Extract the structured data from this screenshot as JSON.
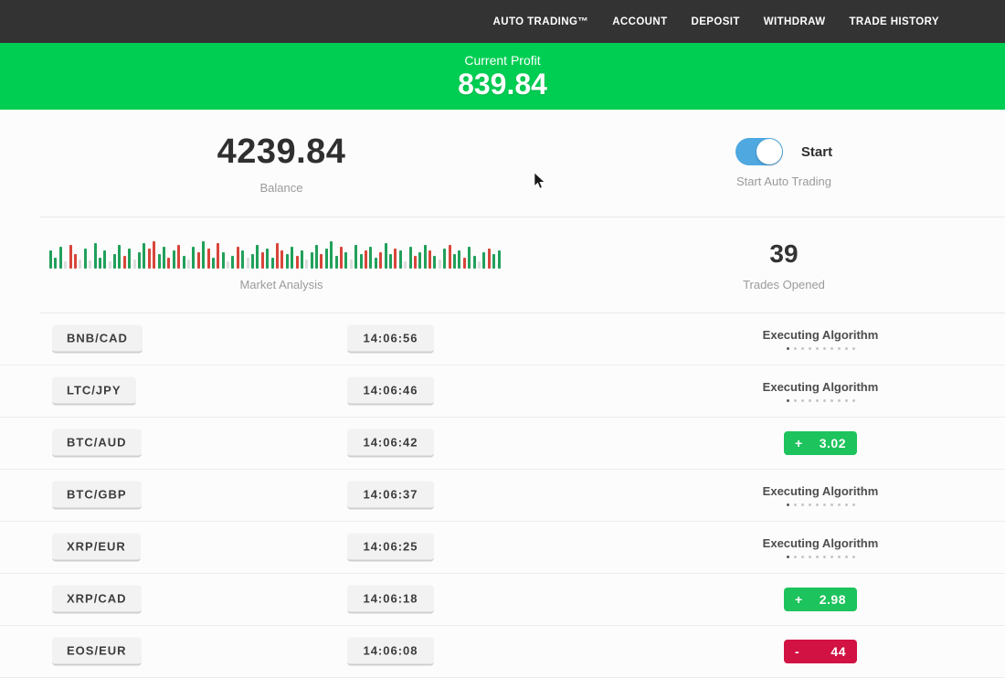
{
  "navbar": {
    "items": [
      {
        "label": "AUTO TRADING™"
      },
      {
        "label": "ACCOUNT"
      },
      {
        "label": "DEPOSIT"
      },
      {
        "label": "WITHDRAW"
      },
      {
        "label": "TRADE HISTORY"
      }
    ]
  },
  "profit_banner": {
    "label": "Current Profit",
    "value": "839.84"
  },
  "account": {
    "balance": "4239.84",
    "balance_label": "Balance",
    "toggle_label": "Start",
    "toggle_caption": "Start Auto Trading",
    "toggle_on": true
  },
  "market": {
    "chart_label": "Market Analysis",
    "trades_opened": "39",
    "trades_opened_label": "Trades Opened"
  },
  "chart_data": {
    "type": "bar",
    "title": "Market Analysis",
    "note": "mini market-activity bar strip; heights in px (max 32), colors g=green up, r=red down, l=light idle",
    "colors_legend": {
      "g": "#21a05b",
      "r": "#d8453a",
      "l": "#dcdcdc"
    },
    "bars": [
      [
        20,
        "g"
      ],
      [
        12,
        "g"
      ],
      [
        24,
        "g"
      ],
      [
        8,
        "l"
      ],
      [
        26,
        "r"
      ],
      [
        16,
        "r"
      ],
      [
        10,
        "l"
      ],
      [
        22,
        "g"
      ],
      [
        9,
        "l"
      ],
      [
        28,
        "g"
      ],
      [
        12,
        "g"
      ],
      [
        20,
        "g"
      ],
      [
        8,
        "l"
      ],
      [
        16,
        "g"
      ],
      [
        26,
        "g"
      ],
      [
        14,
        "r"
      ],
      [
        22,
        "g"
      ],
      [
        10,
        "l"
      ],
      [
        18,
        "g"
      ],
      [
        28,
        "g"
      ],
      [
        22,
        "r"
      ],
      [
        30,
        "r"
      ],
      [
        16,
        "g"
      ],
      [
        24,
        "g"
      ],
      [
        12,
        "r"
      ],
      [
        20,
        "g"
      ],
      [
        26,
        "r"
      ],
      [
        14,
        "g"
      ],
      [
        10,
        "l"
      ],
      [
        24,
        "g"
      ],
      [
        18,
        "r"
      ],
      [
        30,
        "g"
      ],
      [
        22,
        "r"
      ],
      [
        12,
        "g"
      ],
      [
        28,
        "r"
      ],
      [
        18,
        "g"
      ],
      [
        8,
        "l"
      ],
      [
        14,
        "g"
      ],
      [
        24,
        "r"
      ],
      [
        20,
        "g"
      ],
      [
        12,
        "l"
      ],
      [
        16,
        "g"
      ],
      [
        26,
        "g"
      ],
      [
        18,
        "r"
      ],
      [
        22,
        "g"
      ],
      [
        12,
        "g"
      ],
      [
        28,
        "r"
      ],
      [
        20,
        "r"
      ],
      [
        16,
        "g"
      ],
      [
        24,
        "g"
      ],
      [
        14,
        "r"
      ],
      [
        20,
        "g"
      ],
      [
        10,
        "l"
      ],
      [
        18,
        "g"
      ],
      [
        26,
        "g"
      ],
      [
        16,
        "r"
      ],
      [
        22,
        "g"
      ],
      [
        30,
        "g"
      ],
      [
        14,
        "g"
      ],
      [
        24,
        "r"
      ],
      [
        18,
        "g"
      ],
      [
        10,
        "l"
      ],
      [
        26,
        "g"
      ],
      [
        16,
        "g"
      ],
      [
        20,
        "r"
      ],
      [
        24,
        "g"
      ],
      [
        12,
        "g"
      ],
      [
        18,
        "r"
      ],
      [
        28,
        "g"
      ],
      [
        16,
        "g"
      ],
      [
        22,
        "r"
      ],
      [
        20,
        "g"
      ],
      [
        8,
        "l"
      ],
      [
        24,
        "g"
      ],
      [
        14,
        "r"
      ],
      [
        18,
        "g"
      ],
      [
        26,
        "g"
      ],
      [
        20,
        "r"
      ],
      [
        14,
        "g"
      ],
      [
        10,
        "l"
      ],
      [
        22,
        "g"
      ],
      [
        26,
        "r"
      ],
      [
        16,
        "g"
      ],
      [
        20,
        "g"
      ],
      [
        12,
        "r"
      ],
      [
        24,
        "g"
      ],
      [
        14,
        "g"
      ],
      [
        8,
        "l"
      ],
      [
        18,
        "g"
      ],
      [
        22,
        "r"
      ],
      [
        16,
        "g"
      ],
      [
        20,
        "g"
      ]
    ]
  },
  "trade_status": {
    "executing_label": "Executing Algorithm",
    "loader_dots": 10
  },
  "trades": [
    {
      "pair": "BNB/CAD",
      "time": "14:06:56",
      "status": "executing"
    },
    {
      "pair": "LTC/JPY",
      "time": "14:06:46",
      "status": "executing"
    },
    {
      "pair": "BTC/AUD",
      "time": "14:06:42",
      "status": "profit",
      "result_sign": "+",
      "result_value": "3.02"
    },
    {
      "pair": "BTC/GBP",
      "time": "14:06:37",
      "status": "executing"
    },
    {
      "pair": "XRP/EUR",
      "time": "14:06:25",
      "status": "executing"
    },
    {
      "pair": "XRP/CAD",
      "time": "14:06:18",
      "status": "profit",
      "result_sign": "+",
      "result_value": "2.98"
    },
    {
      "pair": "EOS/EUR",
      "time": "14:06:08",
      "status": "loss",
      "result_sign": "-",
      "result_value": "44"
    }
  ],
  "colors": {
    "navbar_bg": "#333333",
    "banner_green": "#00ce52",
    "profit_green": "#1dc35c",
    "loss_red": "#d11243",
    "toggle_blue": "#4fa8e0"
  }
}
